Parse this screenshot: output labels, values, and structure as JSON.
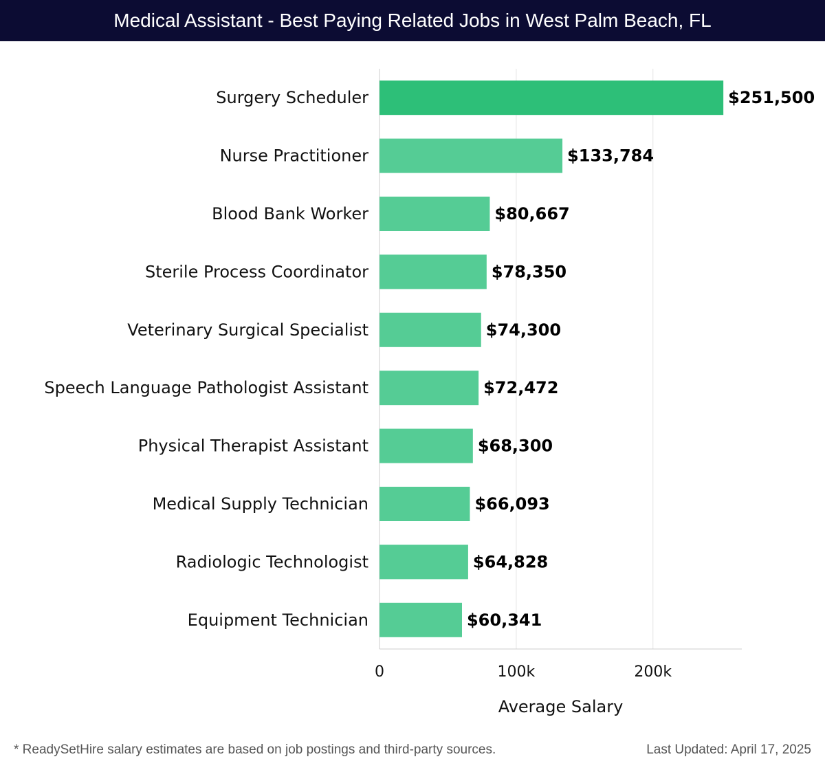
{
  "header": {
    "title": "Medical Assistant - Best Paying Related Jobs in West Palm Beach, FL"
  },
  "chart_data": {
    "type": "bar",
    "orientation": "horizontal",
    "categories": [
      "Surgery Scheduler",
      "Nurse Practitioner",
      "Blood Bank Worker",
      "Sterile Process Coordinator",
      "Veterinary Surgical Specialist",
      "Speech Language Pathologist Assistant",
      "Physical Therapist Assistant",
      "Medical Supply Technician",
      "Radiologic Technologist",
      "Equipment Technician"
    ],
    "values": [
      251500,
      133784,
      80667,
      78350,
      74300,
      72472,
      68300,
      66093,
      64828,
      60341
    ],
    "value_labels": [
      "$251,500",
      "$133,784",
      "$80,667",
      "$78,350",
      "$74,300",
      "$72,472",
      "$68,300",
      "$66,093",
      "$64,828",
      "$60,341"
    ],
    "xlabel": "Average Salary",
    "xlim": [
      0,
      265000
    ],
    "xticks": [
      0,
      100000,
      200000
    ],
    "xtick_labels": [
      "0",
      "100k",
      "200k"
    ],
    "grid": true,
    "colors": {
      "top_bar": "#2dbf78",
      "bar": "#55cc95",
      "grid": "#e3e3e3",
      "axis": "#cccccc"
    }
  },
  "footer": {
    "note": "* ReadySetHire salary estimates are based on job postings and third-party sources.",
    "updated": "Last Updated: April 17, 2025"
  }
}
